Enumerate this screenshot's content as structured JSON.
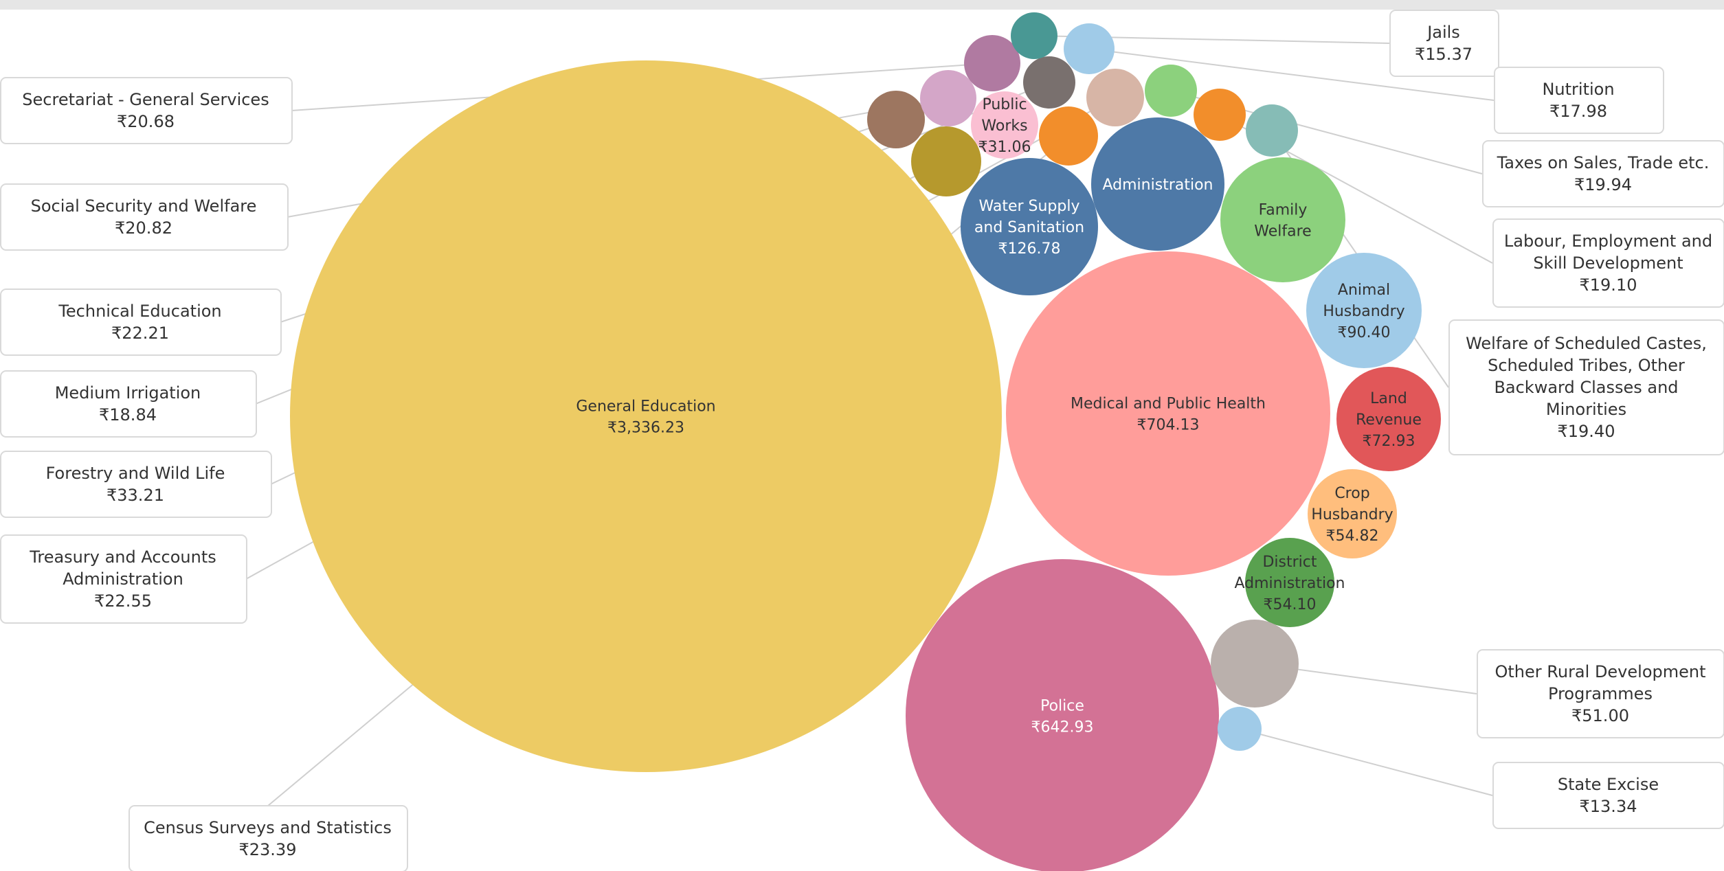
{
  "chart_data": {
    "type": "bubble",
    "title": "",
    "bubbles": [
      {
        "name": "General Education",
        "value": "₹3,336.23",
        "color": "#EDCB64"
      },
      {
        "name": "Medical and Public Health",
        "value": "₹704.13",
        "color": "#FF9D9A"
      },
      {
        "name": "Police",
        "value": "₹642.93",
        "color": "#D37295"
      },
      {
        "name": "Water Supply and Sanitation",
        "value": "₹126.78",
        "color": "#4E79A7"
      },
      {
        "name": "Administration",
        "value": "",
        "color": "#4E79A7"
      },
      {
        "name": "Family Welfare",
        "value": "",
        "color": "#8CD17D"
      },
      {
        "name": "Animal Husbandry",
        "value": "₹90.40",
        "color": "#A0CBE8"
      },
      {
        "name": "Land Revenue",
        "value": "₹72.93",
        "color": "#E15759"
      },
      {
        "name": "Crop Husbandry",
        "value": "₹54.82",
        "color": "#FFBE7D"
      },
      {
        "name": "District Administration",
        "value": "₹54.10",
        "color": "#59A14F"
      },
      {
        "name": "Public Works",
        "value": "₹31.06",
        "color": "#FABFD2"
      },
      {
        "name": "Other Rural Development Programmes",
        "value": "₹51.00",
        "color": "#BAB0AC"
      },
      {
        "name": "Forestry and Wild Life",
        "value": "₹33.21",
        "color": "#B6992D"
      },
      {
        "name": "Census Surveys and Statistics",
        "value": "₹23.39",
        "color": "#F28E2B"
      },
      {
        "name": "Treasury and Accounts Administration",
        "value": "₹22.55",
        "color": "#D7B5A6"
      },
      {
        "name": "Technical Education",
        "value": "₹22.21",
        "color": "#9D7660"
      },
      {
        "name": "Social Security and Welfare",
        "value": "₹20.82",
        "color": "#D4A6C8"
      },
      {
        "name": "Secretariat - General Services",
        "value": "₹20.68",
        "color": "#B07AA1"
      },
      {
        "name": "Taxes on Sales, Trade etc.",
        "value": "₹19.94",
        "color": "#8CD17D"
      },
      {
        "name": "Welfare of Scheduled Castes, Scheduled Tribes, Other Backward Classes and Minorities",
        "value": "₹19.40",
        "color": "#86BCB6"
      },
      {
        "name": "Labour, Employment and Skill Development",
        "value": "₹19.10",
        "color": "#F28E2B"
      },
      {
        "name": "Medium Irrigation",
        "value": "₹18.84",
        "color": "#79706E"
      },
      {
        "name": "Nutrition",
        "value": "₹17.98",
        "color": "#A0CBE8"
      },
      {
        "name": "Jails",
        "value": "₹15.37",
        "color": "#499894"
      },
      {
        "name": "State Excise",
        "value": "₹13.34",
        "color": "#A0CBE8"
      }
    ]
  },
  "bubble_labels": [
    {
      "lines": [
        "General Education",
        "₹3,336.23"
      ],
      "color": "#333333"
    },
    {
      "lines": [
        "Medical and Public Health",
        "₹704.13"
      ],
      "color": "#333333"
    },
    {
      "lines": [
        "Police",
        "₹642.93"
      ],
      "color": "#ffffff"
    },
    {
      "lines": [
        "Water Supply",
        "and Sanitation",
        "₹126.78"
      ],
      "color": "#ffffff"
    },
    {
      "lines": [
        "Administration"
      ],
      "color": "#ffffff"
    },
    {
      "lines": [
        "Family",
        "Welfare"
      ],
      "color": "#333333"
    },
    {
      "lines": [
        "Animal",
        "Husbandry",
        "₹90.40"
      ],
      "color": "#333333"
    },
    {
      "lines": [
        "Land",
        "Revenue",
        "₹72.93"
      ],
      "color": "#333333"
    },
    {
      "lines": [
        "Crop",
        "Husbandry",
        "₹54.82"
      ],
      "color": "#333333"
    },
    {
      "lines": [
        "District",
        "Administration",
        "₹54.10"
      ],
      "color": "#333333"
    },
    {
      "lines": [
        "Public",
        "Works",
        "₹31.06"
      ],
      "color": "#333333"
    }
  ],
  "callouts": [
    {
      "lines": [
        "Jails",
        "₹15.37"
      ]
    },
    {
      "lines": [
        "Nutrition",
        "₹17.98"
      ]
    },
    {
      "lines": [
        "Taxes on Sales, Trade etc.",
        "₹19.94"
      ]
    },
    {
      "lines": [
        "Labour, Employment and",
        "Skill Development",
        "₹19.10"
      ]
    },
    {
      "lines": [
        "Welfare of Scheduled Castes,",
        "Scheduled Tribes, Other",
        "Backward Classes and",
        "Minorities",
        "₹19.40"
      ]
    },
    {
      "lines": [
        "Other Rural Development",
        "Programmes",
        "₹51.00"
      ]
    },
    {
      "lines": [
        "State Excise",
        "₹13.34"
      ]
    },
    {
      "lines": [
        "Secretariat - General Services",
        "₹20.68"
      ]
    },
    {
      "lines": [
        "Social Security and Welfare",
        "₹20.82"
      ]
    },
    {
      "lines": [
        "Technical Education",
        "₹22.21"
      ]
    },
    {
      "lines": [
        "Medium Irrigation",
        "₹18.84"
      ]
    },
    {
      "lines": [
        "Forestry and Wild Life",
        "₹33.21"
      ]
    },
    {
      "lines": [
        "Treasury and Accounts",
        "Administration",
        "₹22.55"
      ]
    },
    {
      "lines": [
        "Census Surveys and Statistics",
        "₹23.39"
      ]
    }
  ]
}
